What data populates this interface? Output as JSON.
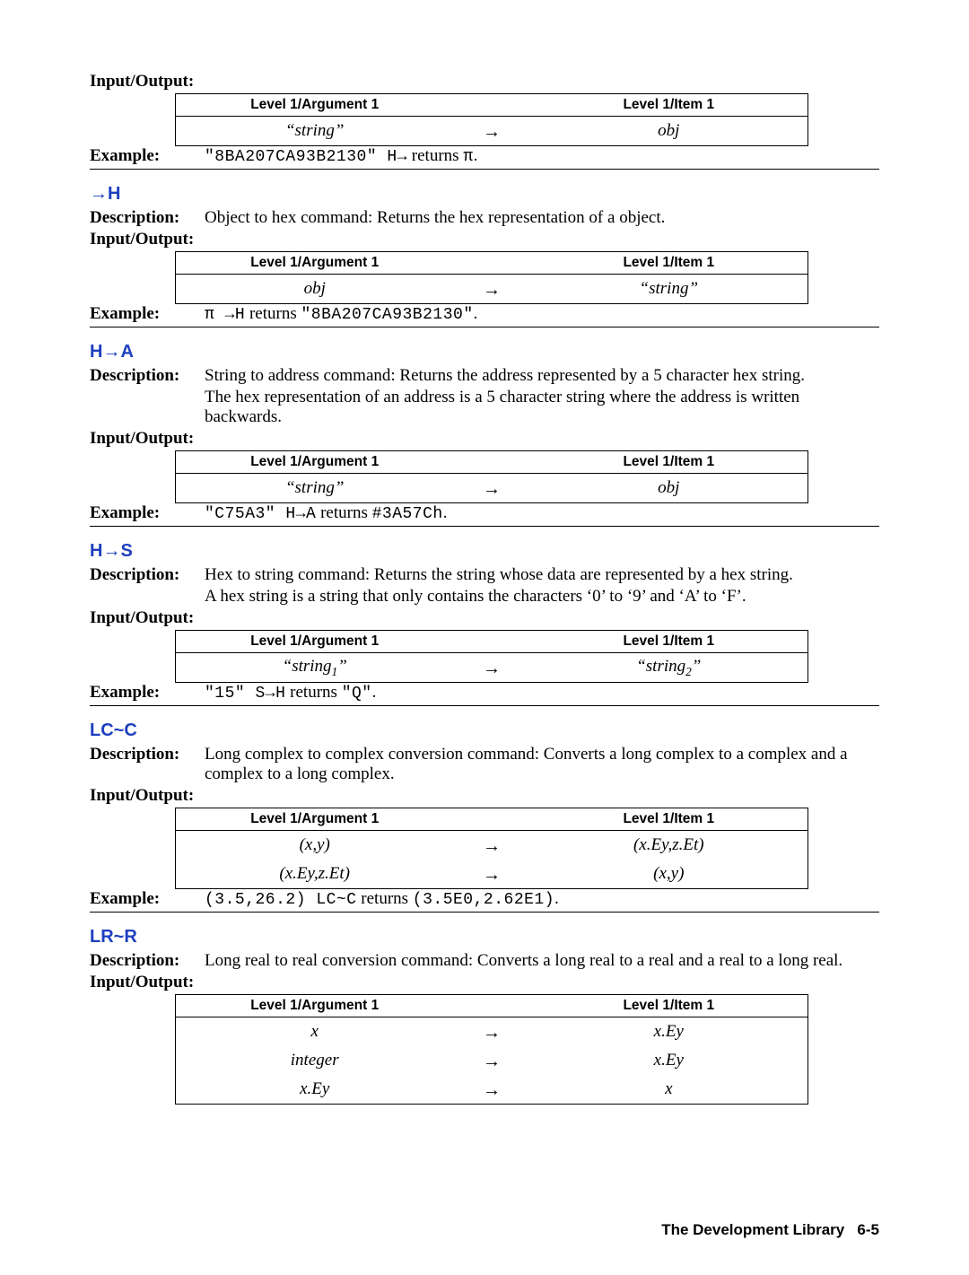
{
  "labels": {
    "description": "Description:",
    "io": "Input/Output:",
    "example": "Example:"
  },
  "table_headers": {
    "arg": "Level 1/Argument 1",
    "item": "Level 1/Item 1"
  },
  "arrow": "→",
  "sections": [
    {
      "id": "pre",
      "heading": null,
      "description": null,
      "io_label_only": true,
      "table": [
        {
          "arg_italic": "“string”",
          "item_italic": "obj"
        }
      ],
      "example": {
        "prefix_mono": "\"8BA207CA93B2130\" H→",
        "mid_text": " returns ",
        "suffix_mono": "π",
        "suffix_text": "."
      }
    },
    {
      "id": "toH",
      "heading": "→H",
      "description": "Object to hex command: Returns the hex representation of a object.",
      "table": [
        {
          "arg_italic": "obj",
          "item_italic": "“string”"
        }
      ],
      "example": {
        "prefix_mono": "π →H",
        "mid_text": " returns ",
        "suffix_mono": "\"8BA207CA93B2130\"",
        "suffix_text": "."
      }
    },
    {
      "id": "HtoA",
      "heading": "H→A",
      "description": "String to address command: Returns the address represented by a 5 character hex string.",
      "description2": "The hex representation of an address is a 5 character string where the address is written backwards.",
      "table": [
        {
          "arg_italic": "“string”",
          "item_italic": "obj"
        }
      ],
      "example": {
        "prefix_mono": "\"C75A3\" H→A",
        "mid_text": " returns ",
        "suffix_mono": "#3A57Ch",
        "suffix_text": "."
      }
    },
    {
      "id": "HtoS",
      "heading": "H→S",
      "description": "Hex to string command: Returns the string whose data are represented by a hex string.",
      "description2": "A hex string is a string that only contains the characters ‘0’ to ‘9’ and ‘A’ to ‘F’.",
      "table": [
        {
          "arg_sub": [
            "“string",
            "1",
            "”"
          ],
          "item_sub": [
            "“string",
            "2",
            "”"
          ]
        }
      ],
      "example": {
        "prefix_mono": "\"15\" S→H",
        "mid_text": " returns ",
        "suffix_mono": "\"Q\"",
        "suffix_text": "."
      }
    },
    {
      "id": "LCC",
      "heading": "LC~C",
      "description": "Long complex to complex conversion command: Converts a long complex to a complex and a complex to a long complex.",
      "table": [
        {
          "arg_italic": "(x,y)",
          "item_italic": "(x.Ey,z.Et)"
        },
        {
          "arg_italic": "(x.Ey,z.Et)",
          "item_italic": "(x,y)"
        }
      ],
      "example": {
        "prefix_mono": "(3.5,26.2) LC~C",
        "mid_text": " returns ",
        "suffix_mono": "(3.5E0,2.62E1)",
        "suffix_text": "."
      }
    },
    {
      "id": "LRR",
      "heading": "LR~R",
      "description": "Long real to real conversion command: Converts a long real to a real and a real to a long real.",
      "table": [
        {
          "arg_italic": "x",
          "item_italic": "x.Ey"
        },
        {
          "arg_italic": "integer",
          "item_italic": "x.Ey"
        },
        {
          "arg_italic": "x.Ey",
          "item_italic": "x"
        }
      ],
      "example": null
    }
  ],
  "footer": {
    "title": "The Development Library",
    "page": "6-5"
  }
}
